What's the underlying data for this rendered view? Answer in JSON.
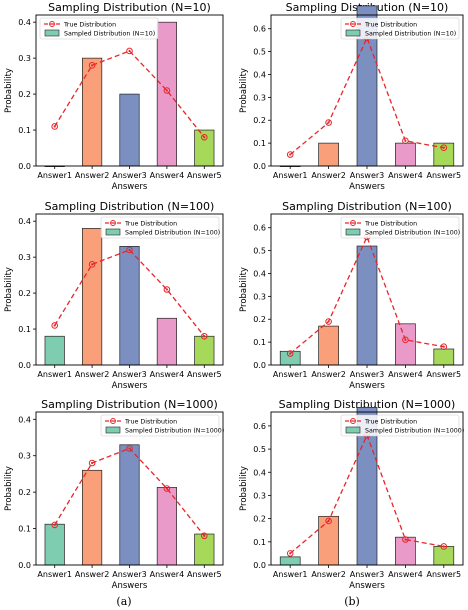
{
  "captions": [
    "(a)",
    "(b)"
  ],
  "colors": {
    "bars": [
      "#7fcdb0",
      "#f9a07a",
      "#7b8fc0",
      "#e99ac8",
      "#a6d95a"
    ],
    "true_line": "#e8262a"
  },
  "chart_data": [
    {
      "type": "bar",
      "title": "Sampling Distribution (N=10)",
      "xlabel": "Answers",
      "ylabel": "Probability",
      "categories": [
        "Answer1",
        "Answer2",
        "Answer3",
        "Answer4",
        "Answer5"
      ],
      "ylim": [
        0,
        0.42
      ],
      "yticks": [
        "0.0",
        "0.1",
        "0.2",
        "0.3",
        "0.4"
      ],
      "series": [
        {
          "name": "True Distribution",
          "kind": "line",
          "values": [
            0.11,
            0.28,
            0.32,
            0.21,
            0.08
          ]
        },
        {
          "name": "Sampled Distribution (N=10)",
          "kind": "bar",
          "values": [
            0.0,
            0.3,
            0.2,
            0.4,
            0.1
          ]
        }
      ],
      "legend": "top-left"
    },
    {
      "type": "bar",
      "title": "Sampling Distribution (N=10)",
      "xlabel": "Answers",
      "ylabel": "Probability",
      "categories": [
        "Answer1",
        "Answer2",
        "Answer3",
        "Answer4",
        "Answer5"
      ],
      "ylim": [
        0,
        0.66
      ],
      "yticks": [
        "0.0",
        "0.1",
        "0.2",
        "0.3",
        "0.4",
        "0.5",
        "0.6"
      ],
      "series": [
        {
          "name": "True Distribution",
          "kind": "line",
          "values": [
            0.05,
            0.19,
            0.56,
            0.11,
            0.08
          ]
        },
        {
          "name": "Sampled Distribution (N=10)",
          "kind": "bar",
          "values": [
            0.0,
            0.1,
            0.7,
            0.1,
            0.1
          ]
        }
      ],
      "legend": "top-right"
    },
    {
      "type": "bar",
      "title": "Sampling Distribution (N=100)",
      "xlabel": "Answers",
      "ylabel": "Probability",
      "categories": [
        "Answer1",
        "Answer2",
        "Answer3",
        "Answer4",
        "Answer5"
      ],
      "ylim": [
        0,
        0.42
      ],
      "yticks": [
        "0.0",
        "0.1",
        "0.2",
        "0.3",
        "0.4"
      ],
      "series": [
        {
          "name": "True Distribution",
          "kind": "line",
          "values": [
            0.11,
            0.28,
            0.32,
            0.21,
            0.08
          ]
        },
        {
          "name": "Sampled Distribution (N=100)",
          "kind": "bar",
          "values": [
            0.08,
            0.38,
            0.33,
            0.13,
            0.08
          ]
        }
      ],
      "legend": "top-right"
    },
    {
      "type": "bar",
      "title": "Sampling Distribution (N=100)",
      "xlabel": "Answers",
      "ylabel": "Probability",
      "categories": [
        "Answer1",
        "Answer2",
        "Answer3",
        "Answer4",
        "Answer5"
      ],
      "ylim": [
        0,
        0.66
      ],
      "yticks": [
        "0.0",
        "0.1",
        "0.2",
        "0.3",
        "0.4",
        "0.5",
        "0.6"
      ],
      "series": [
        {
          "name": "True Distribution",
          "kind": "line",
          "values": [
            0.05,
            0.19,
            0.56,
            0.11,
            0.08
          ]
        },
        {
          "name": "Sampled Distribution (N=100)",
          "kind": "bar",
          "values": [
            0.06,
            0.17,
            0.52,
            0.18,
            0.07
          ]
        }
      ],
      "legend": "top-right"
    },
    {
      "type": "bar",
      "title": "Sampling Distribution (N=1000)",
      "xlabel": "Answers",
      "ylabel": "Probability",
      "categories": [
        "Answer1",
        "Answer2",
        "Answer3",
        "Answer4",
        "Answer5"
      ],
      "ylim": [
        0,
        0.42
      ],
      "yticks": [
        "0.0",
        "0.1",
        "0.2",
        "0.3",
        "0.4"
      ],
      "series": [
        {
          "name": "True Distribution",
          "kind": "line",
          "values": [
            0.11,
            0.28,
            0.32,
            0.21,
            0.08
          ]
        },
        {
          "name": "Sampled Distribution (N=1000)",
          "kind": "bar",
          "values": [
            0.112,
            0.26,
            0.33,
            0.213,
            0.085
          ]
        }
      ],
      "legend": "top-right"
    },
    {
      "type": "bar",
      "title": "Sampling Distribution (N=1000)",
      "xlabel": "Answers",
      "ylabel": "Probability",
      "categories": [
        "Answer1",
        "Answer2",
        "Answer3",
        "Answer4",
        "Answer5"
      ],
      "ylim": [
        0,
        0.66
      ],
      "yticks": [
        "0.0",
        "0.1",
        "0.2",
        "0.3",
        "0.4",
        "0.5",
        "0.6"
      ],
      "series": [
        {
          "name": "True Distribution",
          "kind": "line",
          "values": [
            0.05,
            0.19,
            0.56,
            0.11,
            0.08
          ]
        },
        {
          "name": "Sampled Distribution (N=1000)",
          "kind": "bar",
          "values": [
            0.035,
            0.21,
            0.68,
            0.12,
            0.08
          ]
        }
      ],
      "legend": "top-right"
    }
  ]
}
